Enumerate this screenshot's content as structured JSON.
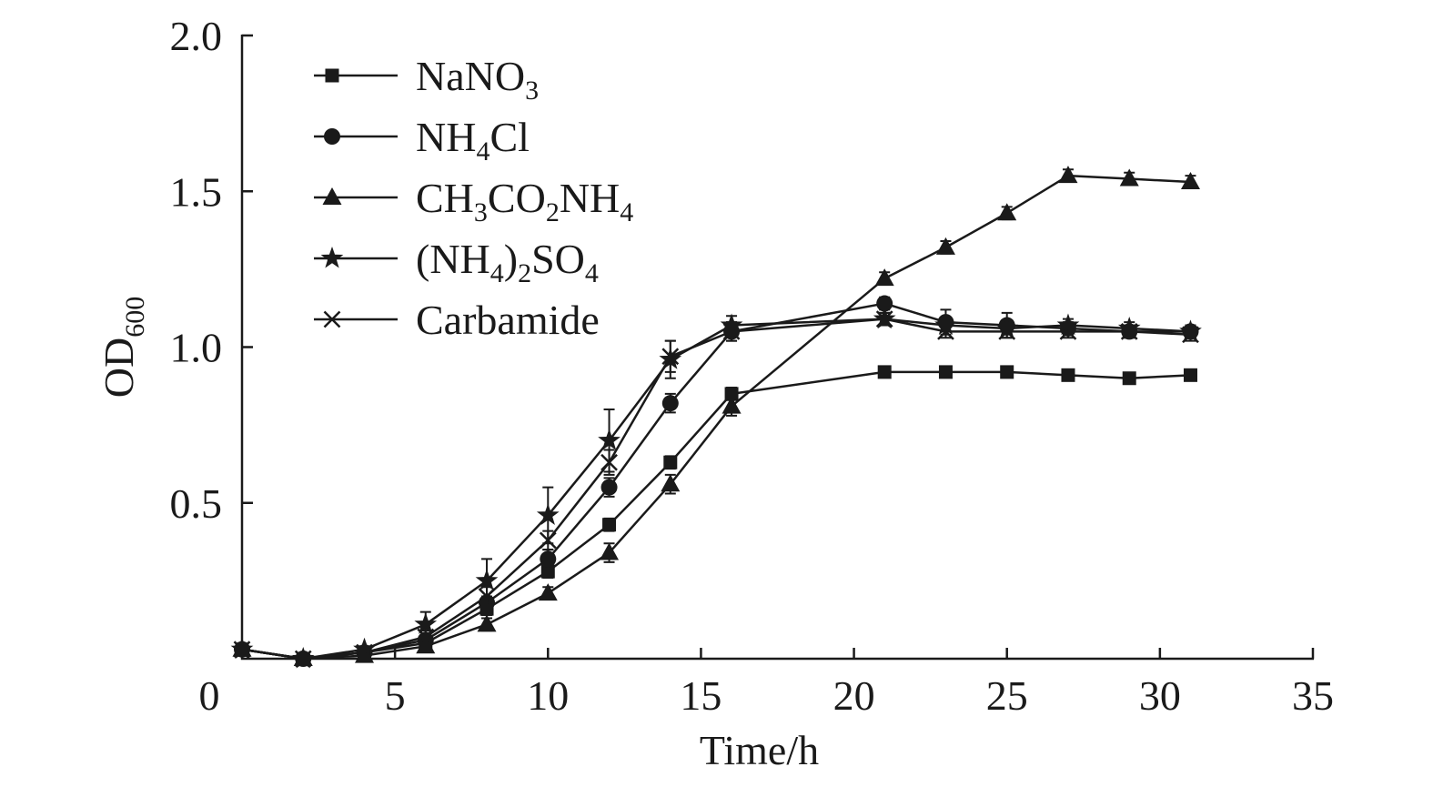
{
  "chart_data": {
    "type": "line",
    "title": "",
    "xlabel": "Time/h",
    "ylabel": {
      "main": "OD",
      "sub": "600"
    },
    "xlim": [
      0,
      35
    ],
    "ylim": [
      0,
      2.0
    ],
    "x_ticks": [
      0,
      5,
      10,
      15,
      20,
      25,
      30,
      35
    ],
    "x_tick_labels": [
      "0",
      "5",
      "10",
      "15",
      "20",
      "25",
      "30",
      "35"
    ],
    "y_ticks": [
      0.5,
      1.0,
      1.5,
      2.0
    ],
    "y_tick_labels": [
      "0.5",
      "1.0",
      "1.5",
      "2.0"
    ],
    "legend_position": "top-left",
    "series": [
      {
        "name": "NaNO3",
        "legend_parts": [
          [
            "NaNO",
            ""
          ],
          [
            "3",
            "sub"
          ]
        ],
        "marker": "square",
        "x": [
          0,
          2,
          4,
          6,
          8,
          10,
          12,
          14,
          16,
          21,
          23,
          25,
          27,
          29,
          31
        ],
        "y": [
          0.03,
          0.0,
          0.02,
          0.05,
          0.16,
          0.28,
          0.43,
          0.63,
          0.85,
          0.92,
          0.92,
          0.92,
          0.91,
          0.9,
          0.91
        ],
        "err": [
          0.01,
          0.01,
          0.01,
          0.01,
          0.02,
          0.02,
          0.02,
          0.02,
          0.02,
          0.01,
          0.01,
          0.01,
          0.01,
          0.01,
          0.01
        ]
      },
      {
        "name": "NH4Cl",
        "legend_parts": [
          [
            "NH",
            ""
          ],
          [
            "4",
            "sub"
          ],
          [
            "Cl",
            ""
          ]
        ],
        "marker": "circle",
        "x": [
          0,
          2,
          4,
          6,
          8,
          10,
          12,
          14,
          16,
          21,
          23,
          25,
          27,
          29,
          31
        ],
        "y": [
          0.03,
          0.0,
          0.02,
          0.06,
          0.18,
          0.32,
          0.55,
          0.82,
          1.05,
          1.14,
          1.08,
          1.07,
          1.06,
          1.05,
          1.05
        ],
        "err": [
          0.01,
          0.01,
          0.01,
          0.01,
          0.02,
          0.03,
          0.03,
          0.03,
          0.03,
          0.02,
          0.04,
          0.04,
          0.02,
          0.02,
          0.02
        ]
      },
      {
        "name": "CH3CO2NH4",
        "legend_parts": [
          [
            "CH",
            ""
          ],
          [
            "3",
            "sub"
          ],
          [
            "CO",
            ""
          ],
          [
            "2",
            "sub"
          ],
          [
            "NH",
            ""
          ],
          [
            "4",
            "sub"
          ]
        ],
        "marker": "triangle",
        "x": [
          0,
          2,
          4,
          6,
          8,
          10,
          12,
          14,
          16,
          21,
          23,
          25,
          27,
          29,
          31
        ],
        "y": [
          0.03,
          0.0,
          0.01,
          0.04,
          0.11,
          0.21,
          0.34,
          0.56,
          0.81,
          1.22,
          1.32,
          1.43,
          1.55,
          1.54,
          1.53
        ],
        "err": [
          0.01,
          0.01,
          0.01,
          0.01,
          0.02,
          0.02,
          0.03,
          0.03,
          0.03,
          0.02,
          0.02,
          0.02,
          0.02,
          0.02,
          0.02
        ]
      },
      {
        "name": "(NH4)2SO4",
        "legend_parts": [
          [
            "(NH",
            ""
          ],
          [
            "4",
            "sub"
          ],
          [
            ")",
            ""
          ],
          [
            "2",
            "sub"
          ],
          [
            "SO",
            ""
          ],
          [
            "4",
            "sub"
          ]
        ],
        "marker": "star",
        "x": [
          0,
          2,
          4,
          6,
          8,
          10,
          12,
          14,
          16,
          21,
          23,
          25,
          27,
          29,
          31
        ],
        "y": [
          0.03,
          0.0,
          0.03,
          0.11,
          0.25,
          0.46,
          0.7,
          0.96,
          1.07,
          1.09,
          1.07,
          1.06,
          1.07,
          1.06,
          1.05
        ],
        "err": [
          0.01,
          0.01,
          0.01,
          0.04,
          0.07,
          0.09,
          0.1,
          0.06,
          0.03,
          0.02,
          0.02,
          0.02,
          0.02,
          0.02,
          0.02
        ]
      },
      {
        "name": "Carbamide",
        "legend_parts": [
          [
            "Carbamide",
            ""
          ]
        ],
        "marker": "x",
        "x": [
          0,
          2,
          4,
          6,
          8,
          10,
          12,
          14,
          16,
          21,
          23,
          25,
          27,
          29,
          31
        ],
        "y": [
          0.03,
          0.0,
          0.02,
          0.07,
          0.2,
          0.38,
          0.63,
          0.97,
          1.05,
          1.09,
          1.05,
          1.05,
          1.05,
          1.05,
          1.04
        ],
        "err": [
          0.01,
          0.01,
          0.01,
          0.02,
          0.03,
          0.03,
          0.04,
          0.05,
          0.03,
          0.02,
          0.02,
          0.02,
          0.02,
          0.02,
          0.02
        ]
      }
    ]
  },
  "colors": {
    "ink": "#1a1a1a",
    "background": "#ffffff"
  }
}
